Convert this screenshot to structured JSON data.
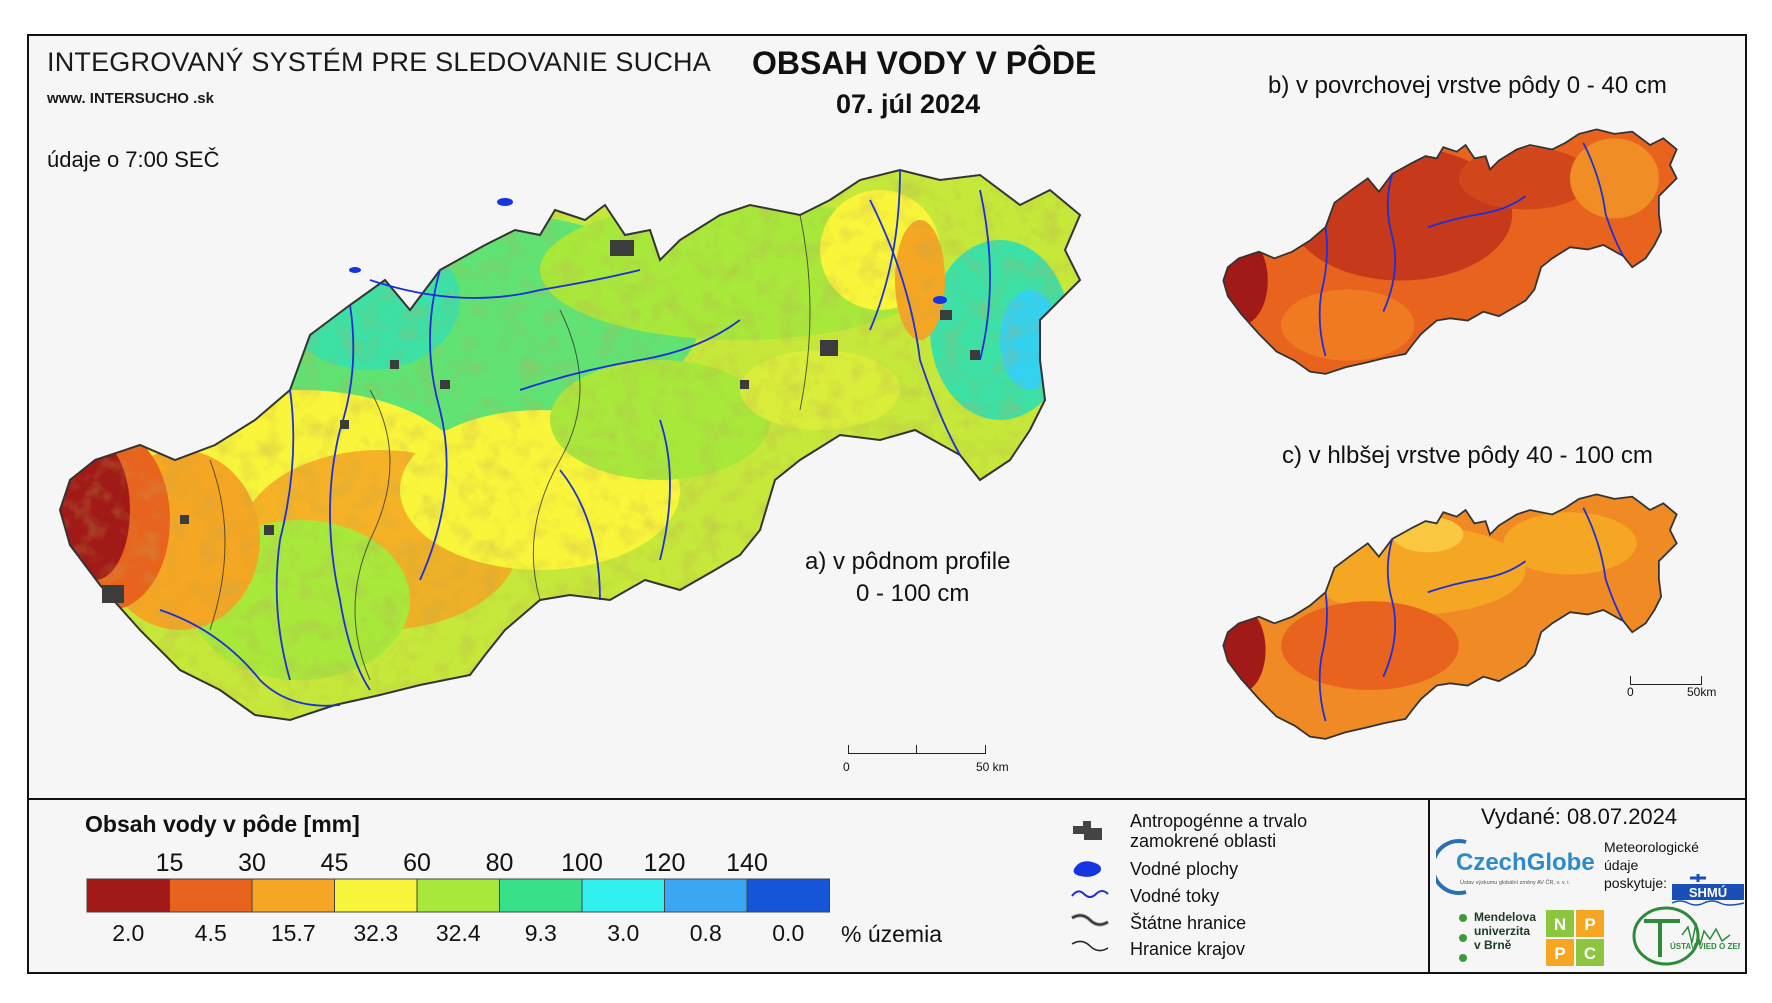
{
  "header": {
    "system_title": "INTEGROVANÝ SYSTÉM PRE SLEDOVANIE SUCHA",
    "url": "www. INTERSUCHO .sk",
    "map_title": "OBSAH VODY V PÔDE",
    "date": "07. júl 2024",
    "data_time": "údaje o 7:00 SEČ"
  },
  "maps": {
    "a_label_line1": "a) v pôdnom profile",
    "a_label_line2": "0 - 100 cm",
    "b_label": "b) v povrchovej vrstve pôdy 0 - 40 cm",
    "c_label": "c) v hlbšej vrstve pôdy 40 - 100 cm"
  },
  "scale_bars": {
    "main_start": "0",
    "main_end": "50 km",
    "small_start": "0",
    "small_end": "50km"
  },
  "legend": {
    "title": "Obsah vody v pôde  [mm]",
    "thresholds": [
      "15",
      "30",
      "45",
      "60",
      "80",
      "100",
      "120",
      "140"
    ],
    "colors": [
      "#a11a17",
      "#e8641e",
      "#f5a623",
      "#f9f53a",
      "#a8e83b",
      "#39e08a",
      "#32f0f0",
      "#3aa7f5",
      "#1556d6"
    ],
    "percent_of_area": [
      "2.0",
      "4.5",
      "15.7",
      "32.3",
      "32.4",
      "9.3",
      "3.0",
      "0.8",
      "0.0"
    ],
    "percent_unit": "% územia"
  },
  "symbol_legend": {
    "items": [
      {
        "label": "Antropogénne a trvalo zamokrené oblasti",
        "icon": "urban-area-icon"
      },
      {
        "label": "Vodné plochy",
        "icon": "water-body-icon"
      },
      {
        "label": "Vodné toky",
        "icon": "river-icon"
      },
      {
        "label": "Štátne hranice",
        "icon": "state-border-icon"
      },
      {
        "label": "Hranice krajov",
        "icon": "region-border-icon"
      }
    ]
  },
  "footer": {
    "issued": "Vydané: 08.07.2024",
    "czechglobe": "CzechGlobe",
    "czechglobe_sub": "Ústav výzkumu globální změny AV ČR, v. v. i.",
    "meteo_line1": "Meteorologické",
    "meteo_line2": "údaje",
    "meteo_line3": "poskytuje:",
    "shmu": "SHMÚ",
    "mendel_line1": "Mendelova",
    "mendel_line2": "univerzita",
    "mendel_line3": "v Brně",
    "nppc_letters": [
      "N",
      "P",
      "P",
      "C"
    ],
    "uvz": "ÚSTAV VIED O ZEMI"
  }
}
